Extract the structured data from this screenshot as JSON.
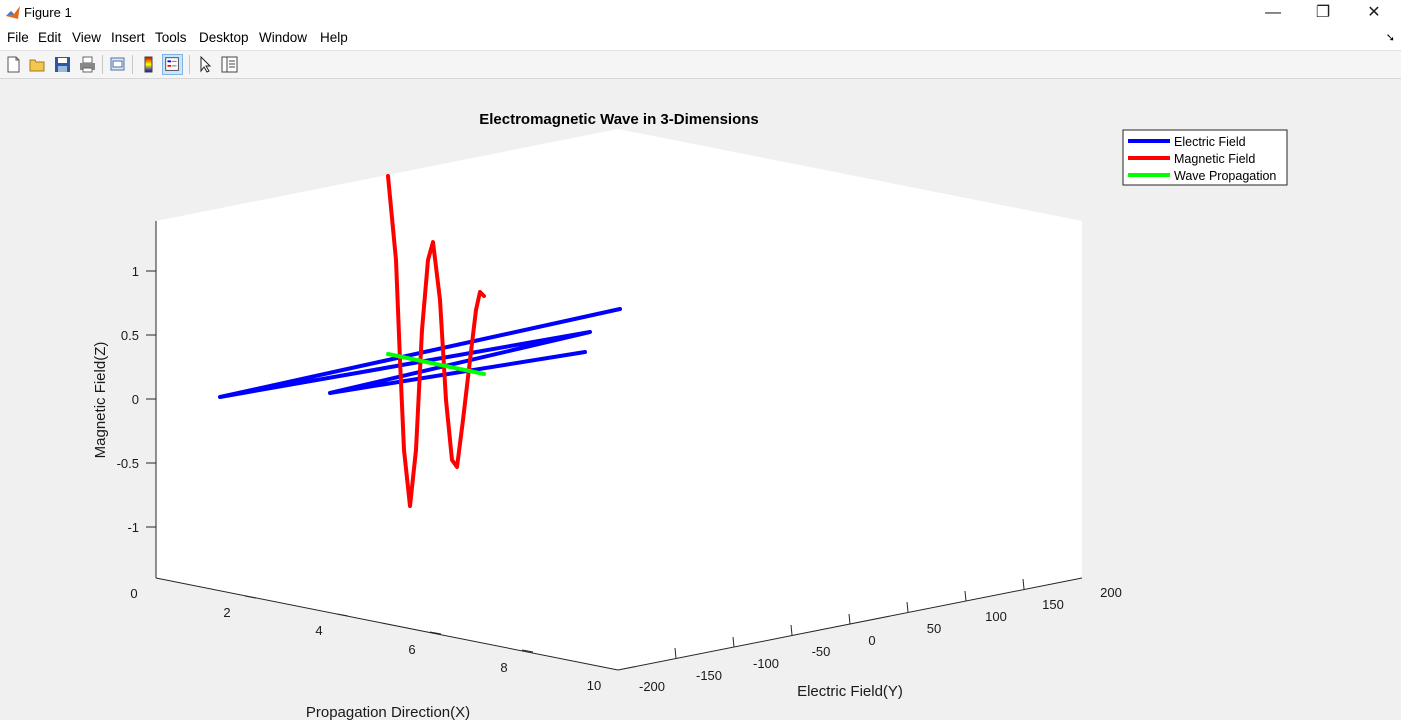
{
  "window": {
    "title": "Figure 1",
    "minimize": "—",
    "restore": "❐",
    "close": "✕"
  },
  "menu": [
    "File",
    "Edit",
    "View",
    "Insert",
    "Tools",
    "Desktop",
    "Window",
    "Help"
  ],
  "toolbar": {
    "items": [
      "new-figure",
      "open-file",
      "save-figure",
      "print-figure",
      "link-plot",
      "insert-colorbar",
      "insert-legend",
      "edit-plot",
      "property-inspector"
    ]
  },
  "chart_data": {
    "type": "line",
    "title": "Electromagnetic Wave in 3-Dimensions",
    "xlabel": "Propagation Direction(X)",
    "ylabel": "Electric Field(Y)",
    "zlabel": "Magnetic Field(Z)",
    "x_ticks": [
      "0",
      "2",
      "4",
      "6",
      "8",
      "10"
    ],
    "y_ticks": [
      "-200",
      "-150",
      "-100",
      "-50",
      "0",
      "50",
      "100",
      "150",
      "200"
    ],
    "z_ticks": [
      "1",
      "0.5",
      "0",
      "-0.5",
      "-1"
    ],
    "xlim": [
      0,
      10
    ],
    "ylim": [
      -200,
      200
    ],
    "zlim": [
      -1.4,
      1.4
    ],
    "legend": {
      "position": "top-right",
      "entries": [
        "Electric Field",
        "Magnetic Field",
        "Wave Propagation"
      ]
    },
    "colors": {
      "Electric Field": "#0000ff",
      "Magnetic Field": "#ff0000",
      "Wave Propagation": "#00ff00"
    },
    "series": [
      {
        "name": "Electric Field",
        "polyline_yz": [
          [
            0,
            0
          ],
          [
            -160,
            0
          ],
          [
            150,
            0
          ],
          [
            -60,
            0
          ],
          [
            130,
            0
          ]
        ]
      },
      {
        "name": "Magnetic Field",
        "wave": "sine in z along x",
        "z_amplitude": 1.3
      },
      {
        "name": "Wave Propagation",
        "x_range": [
          2.8,
          5.2
        ],
        "y": 0,
        "z": 0
      }
    ]
  }
}
